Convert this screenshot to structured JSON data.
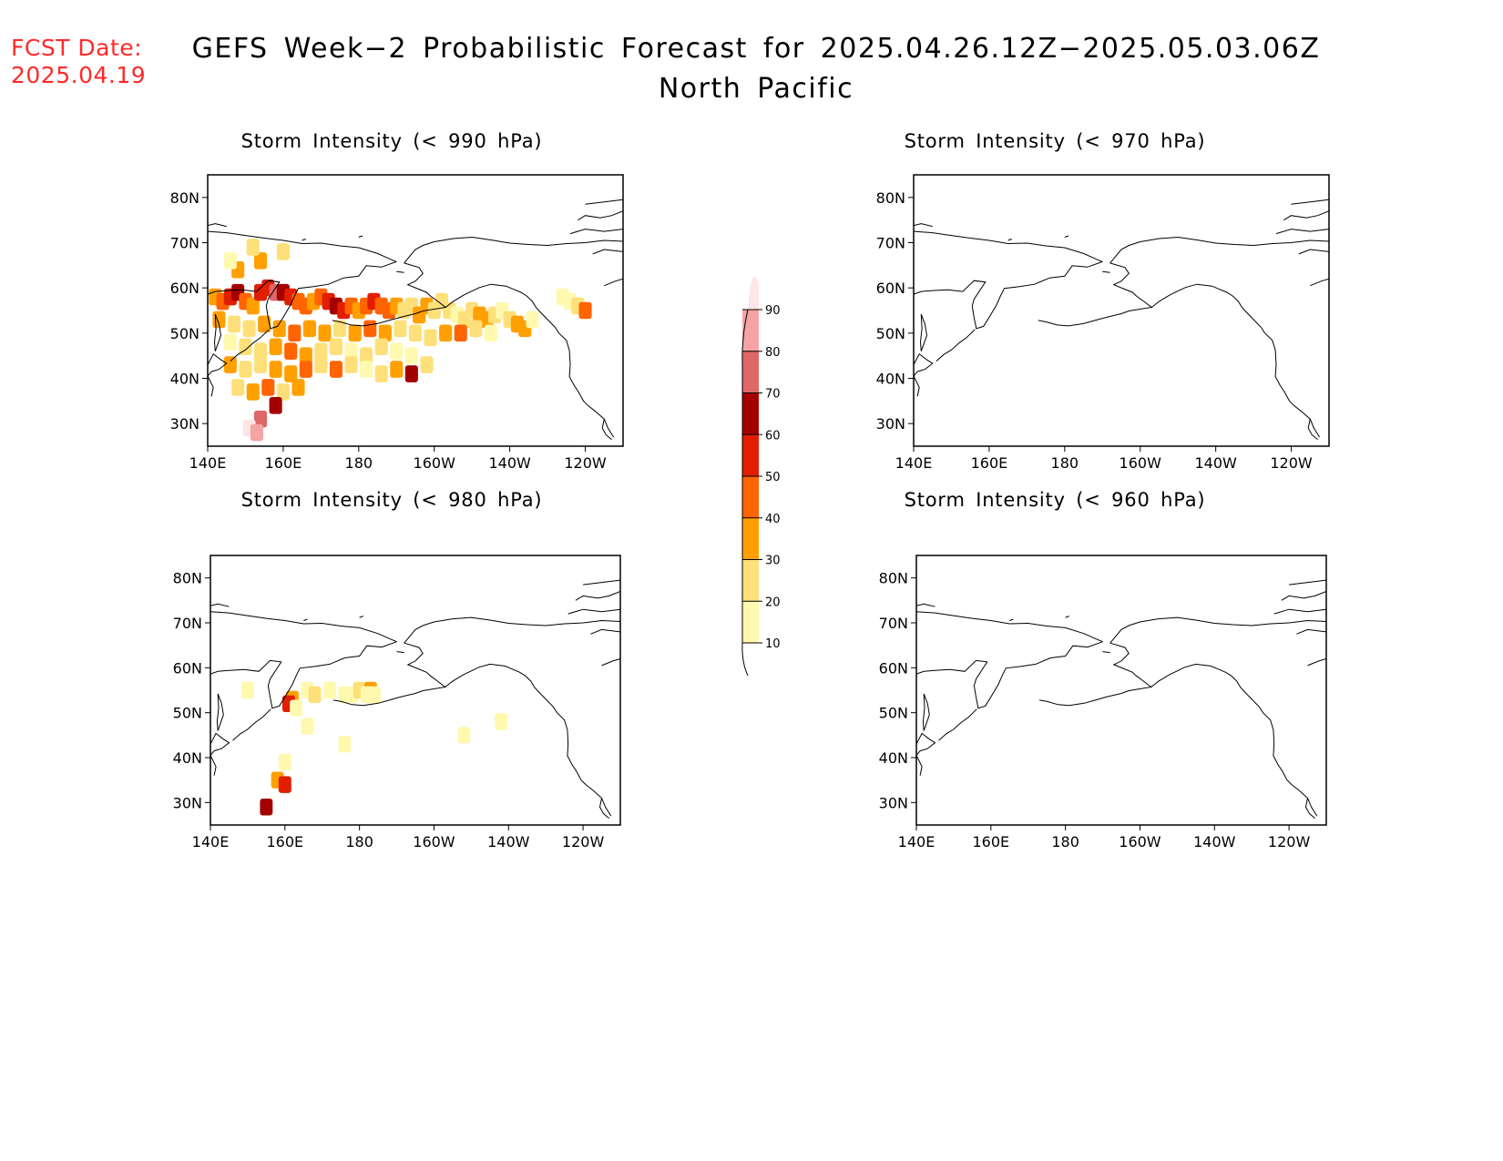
{
  "header": {
    "fcst_label": "FCST Date:",
    "fcst_value": "2025.04.19",
    "title_line1": "GEFS Week−2 Probabilistic Forecast for 2025.04.26.12Z−2025.05.03.06Z",
    "title_line2": "North Pacific"
  },
  "colors": {
    "date_text": "#ff2a2a",
    "levels": [
      "#fff9b0",
      "#fde07a",
      "#ffa000",
      "#ff6400",
      "#e11e00",
      "#a50000",
      "#df6767",
      "#f5a3a3",
      "#fde6e6"
    ]
  },
  "legend": {
    "ticks": [
      "10",
      "20",
      "30",
      "40",
      "50",
      "60",
      "70",
      "80",
      "90"
    ]
  },
  "axes": {
    "lon_labels": [
      "140E",
      "160E",
      "180",
      "160W",
      "140W",
      "120W"
    ],
    "lat_labels": [
      "30N",
      "40N",
      "50N",
      "60N",
      "70N",
      "80N"
    ],
    "lon_values": [
      140,
      160,
      180,
      200,
      220,
      240
    ],
    "lat_values": [
      30,
      40,
      50,
      60,
      70,
      80
    ],
    "lon_range": [
      140,
      250
    ],
    "lat_range": [
      25,
      85
    ]
  },
  "panels": [
    {
      "title": "Storm Intensity (< 990 hPa)",
      "cells": [
        [
          142,
          58,
          30
        ],
        [
          144,
          57,
          40
        ],
        [
          146,
          58,
          50
        ],
        [
          148,
          59,
          60
        ],
        [
          150,
          57,
          40
        ],
        [
          152,
          56,
          30
        ],
        [
          154,
          59,
          50
        ],
        [
          156,
          60,
          50
        ],
        [
          158,
          59,
          70
        ],
        [
          160,
          59,
          60
        ],
        [
          162,
          58,
          50
        ],
        [
          164,
          57,
          40
        ],
        [
          166,
          56,
          40
        ],
        [
          168,
          57,
          30
        ],
        [
          170,
          58,
          40
        ],
        [
          172,
          57,
          50
        ],
        [
          174,
          56,
          60
        ],
        [
          176,
          55,
          50
        ],
        [
          178,
          56,
          40
        ],
        [
          180,
          55,
          30
        ],
        [
          182,
          56,
          40
        ],
        [
          184,
          57,
          50
        ],
        [
          186,
          56,
          40
        ],
        [
          188,
          55,
          40
        ],
        [
          190,
          56,
          30
        ],
        [
          192,
          55,
          20
        ],
        [
          194,
          56,
          20
        ],
        [
          196,
          54,
          30
        ],
        [
          198,
          56,
          30
        ],
        [
          200,
          55,
          20
        ],
        [
          202,
          57,
          20
        ],
        [
          204,
          55,
          20
        ],
        [
          206,
          54,
          10
        ],
        [
          208,
          53,
          20
        ],
        [
          210,
          55,
          20
        ],
        [
          212,
          54,
          30
        ],
        [
          214,
          53,
          30
        ],
        [
          216,
          54,
          20
        ],
        [
          218,
          55,
          10
        ],
        [
          220,
          53,
          20
        ],
        [
          222,
          52,
          30
        ],
        [
          224,
          51,
          30
        ],
        [
          226,
          53,
          10
        ],
        [
          143,
          53,
          30
        ],
        [
          147,
          52,
          20
        ],
        [
          151,
          51,
          20
        ],
        [
          155,
          52,
          30
        ],
        [
          159,
          51,
          30
        ],
        [
          163,
          50,
          40
        ],
        [
          167,
          51,
          30
        ],
        [
          171,
          50,
          30
        ],
        [
          175,
          51,
          20
        ],
        [
          179,
          50,
          30
        ],
        [
          183,
          51,
          40
        ],
        [
          187,
          50,
          30
        ],
        [
          191,
          51,
          20
        ],
        [
          195,
          50,
          20
        ],
        [
          199,
          49,
          20
        ],
        [
          203,
          50,
          30
        ],
        [
          207,
          50,
          40
        ],
        [
          211,
          51,
          20
        ],
        [
          215,
          50,
          10
        ],
        [
          146,
          48,
          10
        ],
        [
          150,
          47,
          20
        ],
        [
          154,
          46,
          20
        ],
        [
          158,
          47,
          30
        ],
        [
          162,
          46,
          40
        ],
        [
          166,
          45,
          30
        ],
        [
          170,
          46,
          20
        ],
        [
          174,
          47,
          20
        ],
        [
          178,
          46,
          10
        ],
        [
          182,
          45,
          20
        ],
        [
          186,
          47,
          20
        ],
        [
          190,
          46,
          10
        ],
        [
          194,
          45,
          10
        ],
        [
          146,
          43,
          30
        ],
        [
          150,
          42,
          20
        ],
        [
          154,
          43,
          20
        ],
        [
          158,
          42,
          30
        ],
        [
          162,
          41,
          30
        ],
        [
          166,
          42,
          40
        ],
        [
          170,
          43,
          20
        ],
        [
          174,
          42,
          40
        ],
        [
          178,
          43,
          20
        ],
        [
          182,
          42,
          10
        ],
        [
          186,
          41,
          20
        ],
        [
          190,
          42,
          30
        ],
        [
          194,
          41,
          60
        ],
        [
          198,
          43,
          20
        ],
        [
          148,
          38,
          20
        ],
        [
          152,
          37,
          30
        ],
        [
          156,
          38,
          40
        ],
        [
          160,
          37,
          20
        ],
        [
          164,
          38,
          30
        ],
        [
          158,
          34,
          60
        ],
        [
          154,
          31,
          70
        ],
        [
          151,
          29,
          90
        ],
        [
          153,
          28,
          80
        ],
        [
          148,
          64,
          30
        ],
        [
          154,
          66,
          30
        ],
        [
          160,
          68,
          20
        ],
        [
          146,
          66,
          10
        ],
        [
          152,
          69,
          20
        ],
        [
          236,
          57,
          10
        ],
        [
          238,
          56,
          20
        ],
        [
          240,
          55,
          40
        ],
        [
          234,
          58,
          10
        ]
      ]
    },
    {
      "title": "Storm Intensity (< 970 hPa)",
      "cells": []
    },
    {
      "title": "Storm Intensity (< 980 hPa)",
      "cells": [
        [
          162,
          53,
          30
        ],
        [
          161,
          52,
          50
        ],
        [
          163,
          51,
          10
        ],
        [
          166,
          55,
          10
        ],
        [
          168,
          54,
          20
        ],
        [
          172,
          55,
          10
        ],
        [
          176,
          54,
          10
        ],
        [
          178,
          54,
          10
        ],
        [
          180,
          55,
          20
        ],
        [
          183,
          55,
          30
        ],
        [
          182,
          54,
          10
        ],
        [
          184,
          54,
          10
        ],
        [
          166,
          47,
          10
        ],
        [
          176,
          43,
          10
        ],
        [
          160,
          39,
          10
        ],
        [
          158,
          35,
          30
        ],
        [
          160,
          34,
          50
        ],
        [
          155,
          29,
          60
        ],
        [
          150,
          55,
          10
        ],
        [
          208,
          45,
          10
        ],
        [
          218,
          48,
          10
        ]
      ]
    },
    {
      "title": "Storm Intensity (< 960 hPa)",
      "cells": []
    }
  ]
}
